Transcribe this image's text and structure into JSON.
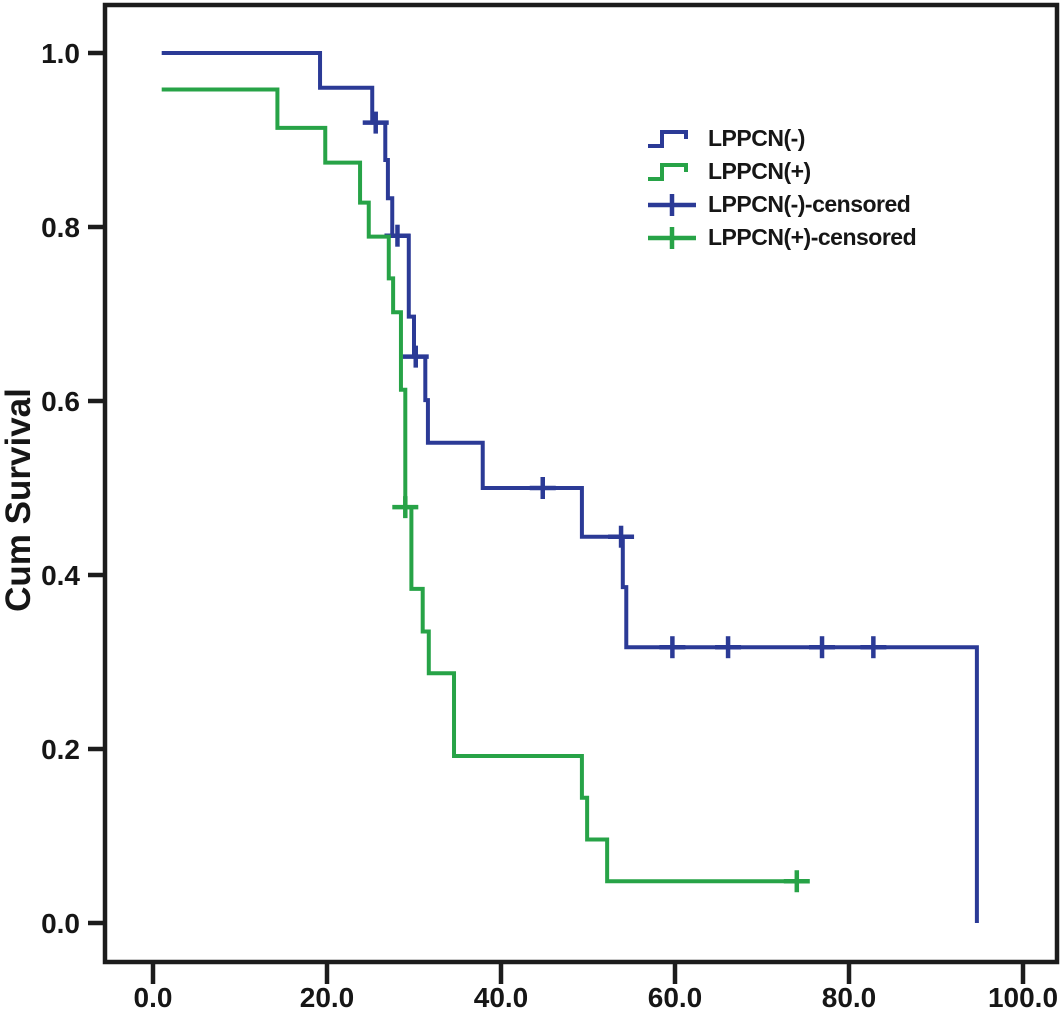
{
  "figure": {
    "background": "#ffffff",
    "frame_color": "#1c1c1c",
    "text_color": "#161616"
  },
  "chart_data": {
    "type": "line",
    "subtype": "kaplan_meier_step",
    "title": "",
    "xlabel": "",
    "ylabel": "Cum Survival",
    "xlim": [
      0,
      100
    ],
    "ylim": [
      0.0,
      1.0
    ],
    "grid": false,
    "legend_position": "inside-upper-right",
    "x_ticks": {
      "values": [
        0,
        20,
        40,
        60,
        80,
        100
      ],
      "labels": [
        "0.0",
        "20.0",
        "40.0",
        "60.0",
        "80.0",
        "100.0"
      ]
    },
    "y_ticks": {
      "values": [
        0.0,
        0.2,
        0.4,
        0.6,
        0.8,
        1.0
      ],
      "labels": [
        "0.0",
        "0.2",
        "0.4",
        "0.6",
        "0.8",
        "1.0"
      ]
    },
    "series": [
      {
        "name": "LPPCN(-)",
        "color": "#2b3a96",
        "steps": [
          [
            1.0,
            1.0
          ],
          [
            19.2,
            0.96
          ],
          [
            25.2,
            0.92
          ],
          [
            26.7,
            0.877
          ],
          [
            27.0,
            0.833
          ],
          [
            27.5,
            0.79
          ],
          [
            29.4,
            0.697
          ],
          [
            30.0,
            0.651
          ],
          [
            31.3,
            0.601
          ],
          [
            31.6,
            0.552
          ],
          [
            37.9,
            0.5
          ],
          [
            49.3,
            0.444
          ],
          [
            54.0,
            0.386
          ],
          [
            54.4,
            0.317
          ]
        ],
        "end_time": 94.7,
        "end_drop_to": 0.0,
        "censored": [
          [
            25.6,
            0.92
          ],
          [
            28.1,
            0.79
          ],
          [
            30.2,
            0.651
          ],
          [
            44.8,
            0.5
          ],
          [
            53.8,
            0.444
          ],
          [
            59.7,
            0.317
          ],
          [
            66.1,
            0.317
          ],
          [
            76.9,
            0.317
          ],
          [
            82.8,
            0.317
          ]
        ]
      },
      {
        "name": "LPPCN(+)",
        "color": "#27a347",
        "steps": [
          [
            1.0,
            0.958
          ],
          [
            14.3,
            0.914
          ],
          [
            19.8,
            0.874
          ],
          [
            23.8,
            0.828
          ],
          [
            24.8,
            0.789
          ],
          [
            27.1,
            0.741
          ],
          [
            27.6,
            0.702
          ],
          [
            28.5,
            0.613
          ],
          [
            29.0,
            0.478
          ],
          [
            29.7,
            0.384
          ],
          [
            31.0,
            0.335
          ],
          [
            31.7,
            0.287
          ],
          [
            34.6,
            0.192
          ],
          [
            49.3,
            0.144
          ],
          [
            49.9,
            0.096
          ],
          [
            52.2,
            0.048
          ]
        ],
        "end_time": 74.0,
        "censored": [
          [
            29.0,
            0.478
          ],
          [
            74.0,
            0.048
          ]
        ]
      }
    ],
    "legend": [
      {
        "label": "LPPCN(-)",
        "glyph": "step-line-glyph",
        "series": 0
      },
      {
        "label": "LPPCN(+)",
        "glyph": "step-line-glyph",
        "series": 1
      },
      {
        "label": "LPPCN(-)-censored",
        "glyph": "plus-glyph",
        "series": 0
      },
      {
        "label": "LPPCN(+)-censored",
        "glyph": "plus-glyph",
        "series": 1
      }
    ]
  }
}
